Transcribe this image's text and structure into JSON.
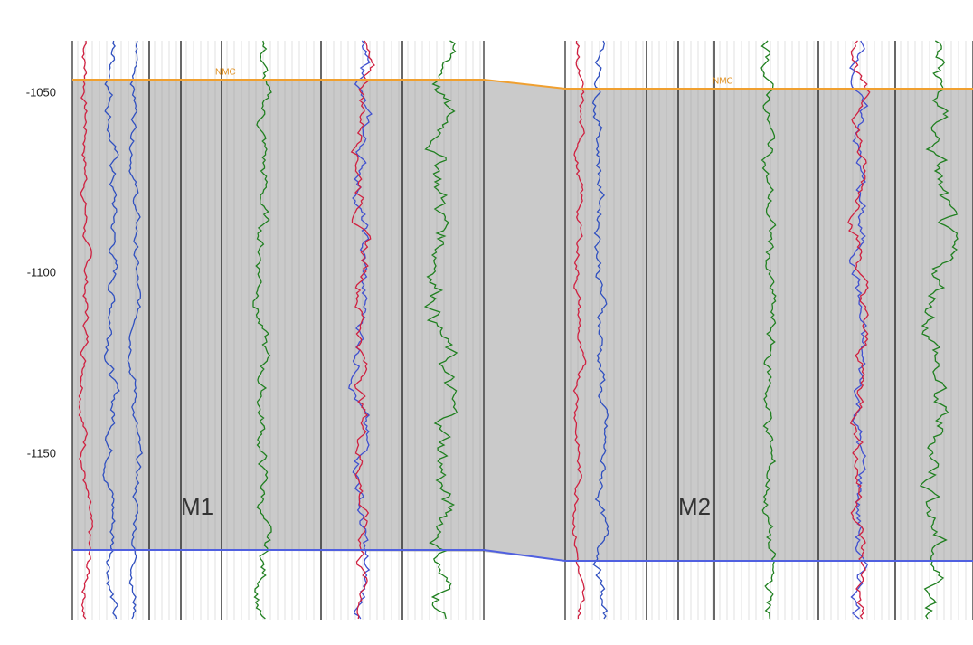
{
  "depth_axis": {
    "ticks": [
      "-1050",
      "-1100",
      "-1150"
    ]
  },
  "wells": [
    {
      "label": "M1",
      "marker": "NMC"
    },
    {
      "label": "M2",
      "marker": "NMC"
    }
  ]
}
